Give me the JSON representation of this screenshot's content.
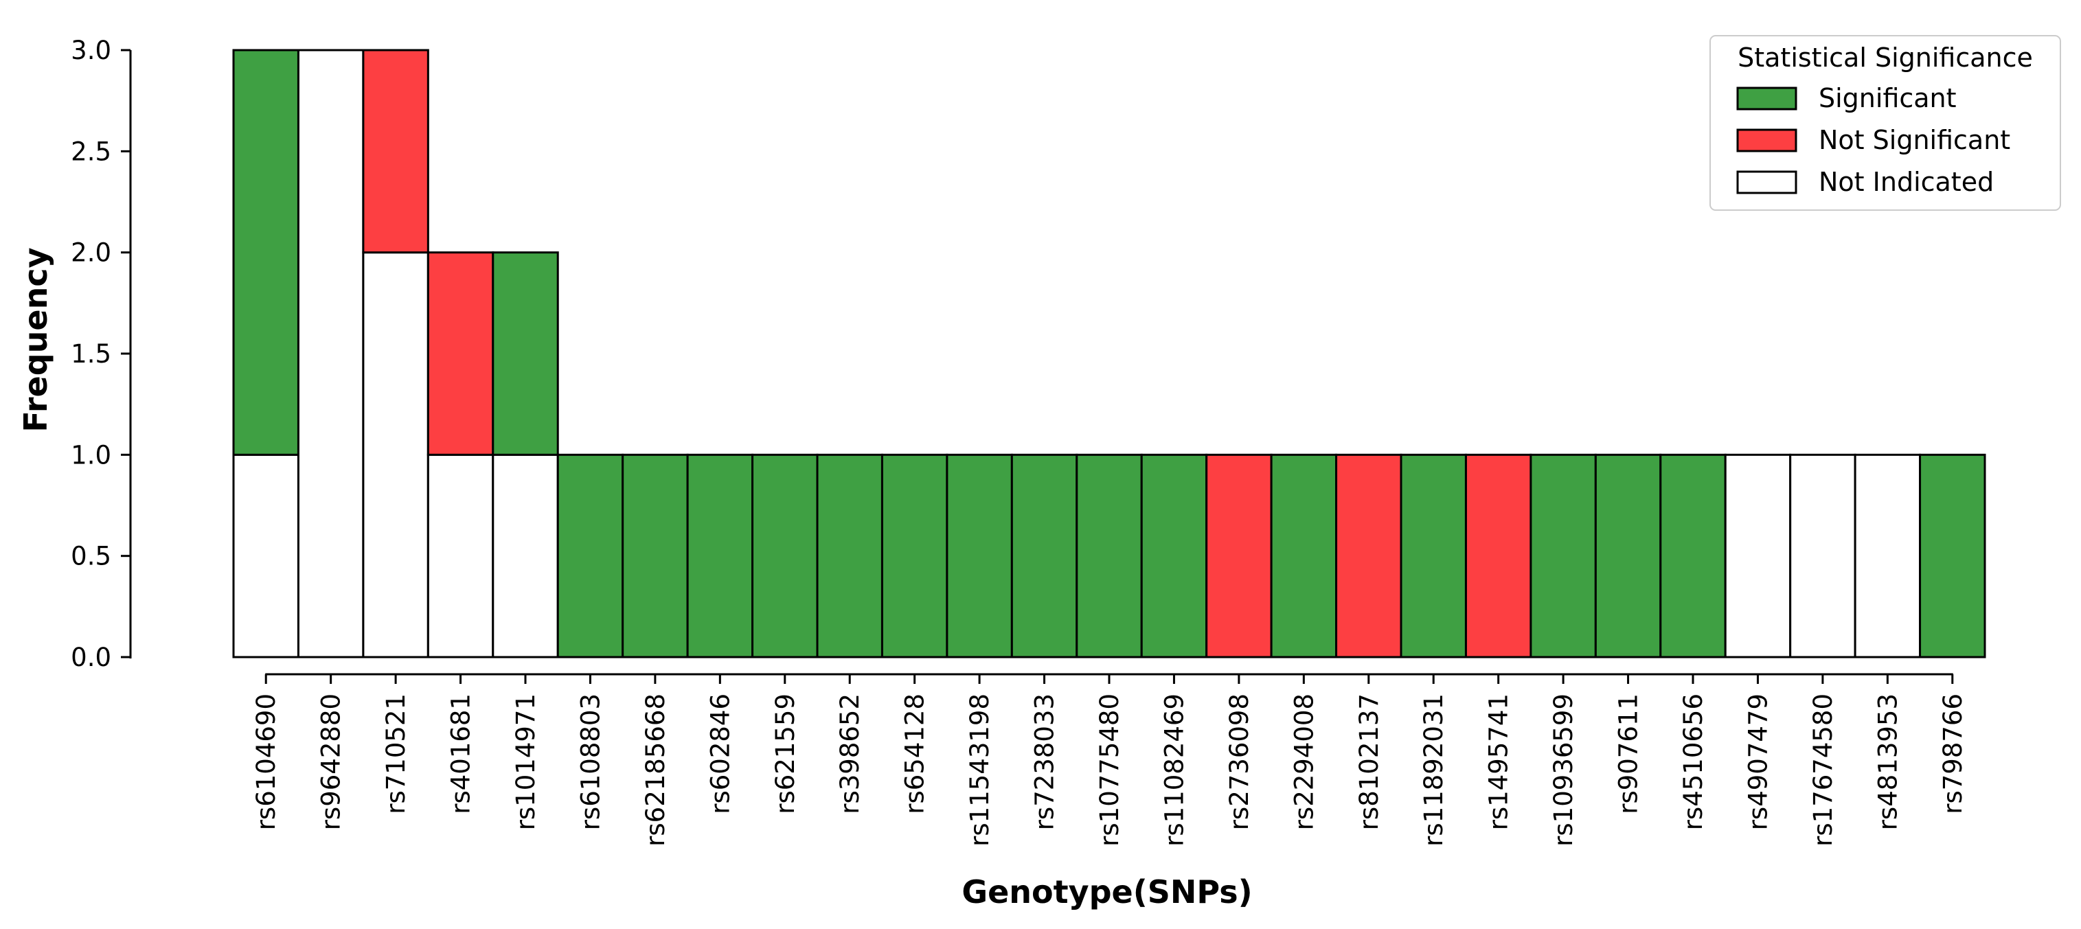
{
  "chart_data": {
    "type": "bar",
    "stacked": true,
    "xlabel": "Genotype(SNPs)",
    "ylabel": "Frequency",
    "ylim": [
      0,
      3.0
    ],
    "yticks": [
      "0.0",
      "0.5",
      "1.0",
      "1.5",
      "2.0",
      "2.5",
      "3.0"
    ],
    "categories": [
      "rs6104690",
      "rs9642880",
      "rs710521",
      "rs401681",
      "rs1014971",
      "rs6108803",
      "rs62185668",
      "rs602846",
      "rs621559",
      "rs398652",
      "rs654128",
      "rs11543198",
      "rs7238033",
      "rs10775480",
      "rs11082469",
      "rs2736098",
      "rs2294008",
      "rs8102137",
      "rs11892031",
      "rs1495741",
      "rs10936599",
      "rs907611",
      "rs4510656",
      "rs4907479",
      "rs17674580",
      "rs4813953",
      "rs798766"
    ],
    "series": [
      {
        "name": "Not Indicated",
        "color": "#ffffff",
        "values": [
          1,
          3,
          2,
          1,
          1,
          0,
          0,
          0,
          0,
          0,
          0,
          0,
          0,
          0,
          0,
          0,
          0,
          0,
          0,
          0,
          0,
          0,
          0,
          1,
          1,
          1,
          0
        ]
      },
      {
        "name": "Significant",
        "color": "#3fa043",
        "values": [
          2,
          0,
          0,
          0,
          1,
          1,
          1,
          1,
          1,
          1,
          1,
          1,
          1,
          1,
          1,
          0,
          1,
          0,
          1,
          0,
          1,
          1,
          1,
          0,
          0,
          0,
          1
        ]
      },
      {
        "name": "Not Significant",
        "color": "#fd3f42",
        "values": [
          0,
          0,
          1,
          1,
          0,
          0,
          0,
          0,
          0,
          0,
          0,
          0,
          0,
          0,
          0,
          1,
          0,
          1,
          0,
          1,
          0,
          0,
          0,
          0,
          0,
          0,
          0
        ]
      }
    ],
    "legend": {
      "title": "Statistical Significance",
      "placement": "top-right",
      "entries": [
        {
          "label": "Significant",
          "color": "#3fa043"
        },
        {
          "label": "Not Significant",
          "color": "#fd3f42"
        },
        {
          "label": "Not Indicated",
          "color": "#ffffff"
        }
      ]
    },
    "grid": false
  }
}
